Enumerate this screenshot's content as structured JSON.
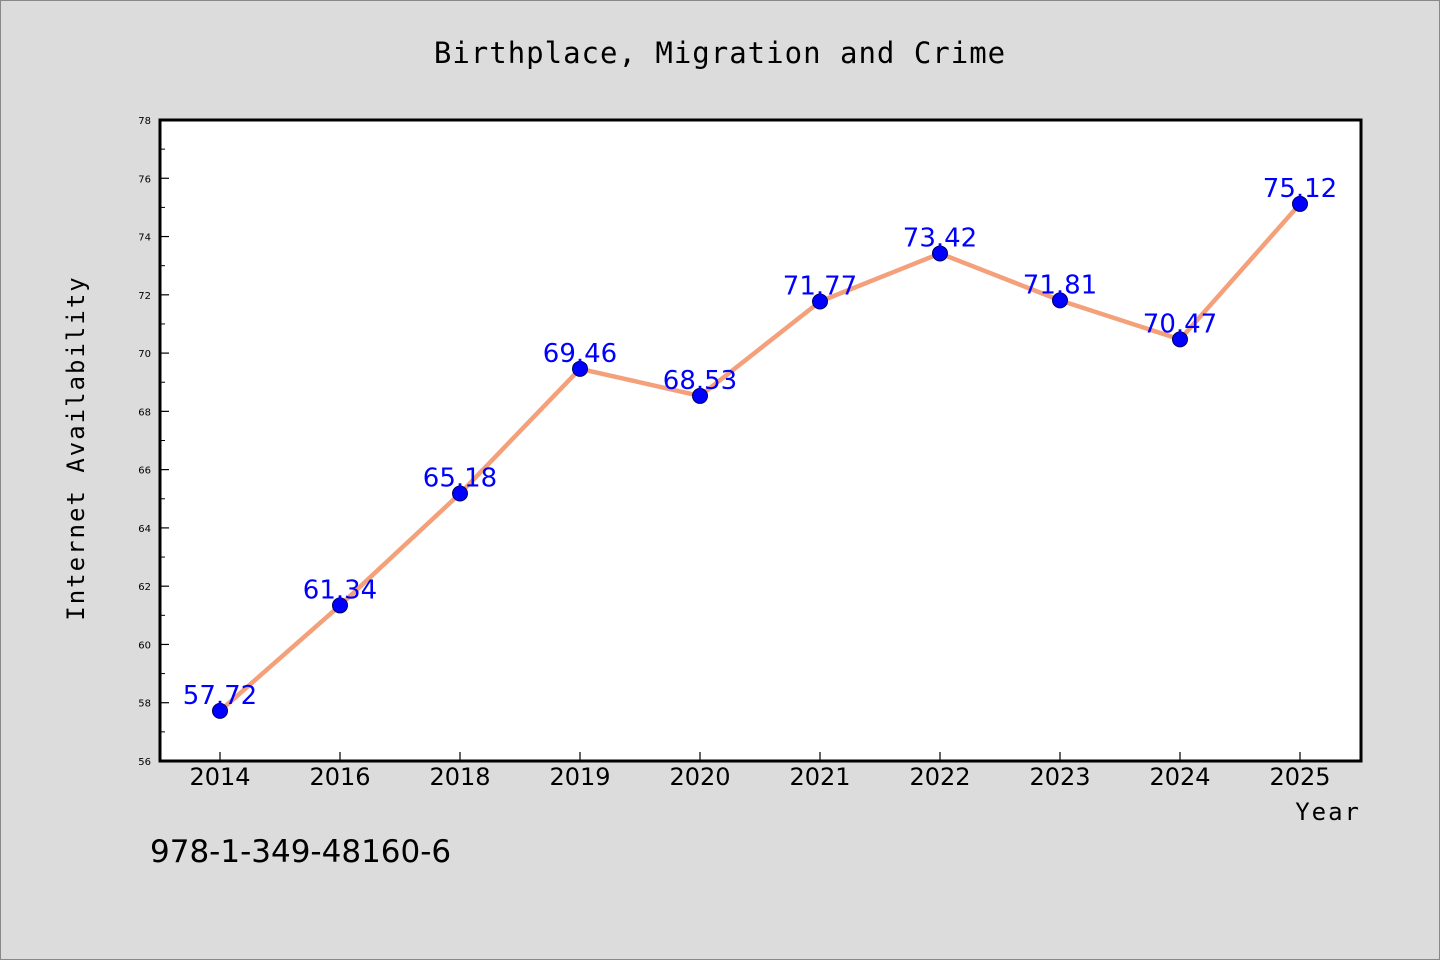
{
  "chart_data": {
    "type": "line",
    "title": "Birthplace, Migration and Crime",
    "xlabel": "Year",
    "ylabel": "Internet Availability",
    "categories": [
      "2014",
      "2016",
      "2018",
      "2019",
      "2020",
      "2021",
      "2022",
      "2023",
      "2024",
      "2025"
    ],
    "series": [
      {
        "values": [
          57.72,
          61.34,
          65.18,
          69.46,
          68.53,
          71.77,
          73.42,
          71.81,
          70.47,
          75.12
        ],
        "data_labels": [
          "57.72",
          "61.34",
          "65.18",
          "69.46",
          "68.53",
          "71.77",
          "73.42",
          "71.81",
          "70.47",
          "75.12"
        ],
        "line_color": "#f4a07a",
        "marker_color": "#0000ff"
      }
    ],
    "ylim": [
      56,
      78
    ],
    "yticks": [
      "56",
      "58",
      "60",
      "62",
      "64",
      "66",
      "68",
      "70",
      "72",
      "74",
      "76",
      "78"
    ],
    "grid": false,
    "legend": "none"
  },
  "footer": {
    "code": "978-1-349-48160-6"
  }
}
